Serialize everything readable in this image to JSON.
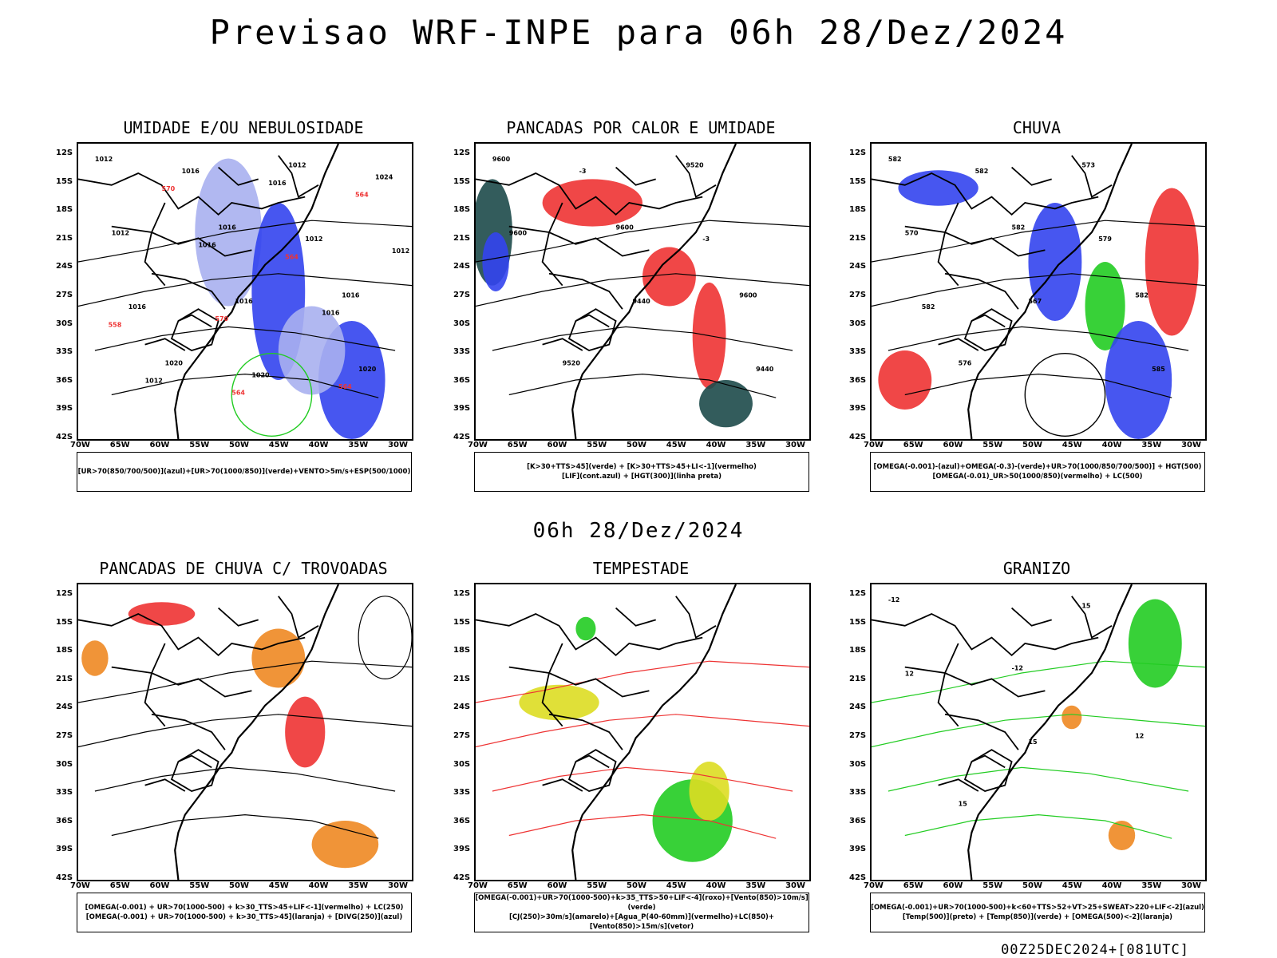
{
  "title": "Previsao WRF-INPE  para 06h 28/Dez/2024",
  "mid_time": "06h 28/Dez/2024",
  "footer": "00Z25DEC2024+[081UTC]",
  "lat_labels": [
    "12S",
    "15S",
    "18S",
    "21S",
    "24S",
    "27S",
    "30S",
    "33S",
    "36S",
    "39S",
    "42S"
  ],
  "lon_labels": [
    "70W",
    "65W",
    "60W",
    "55W",
    "50W",
    "45W",
    "40W",
    "35W",
    "30W"
  ],
  "panels": [
    {
      "title": "UMIDADE E/OU NEBULOSIDADE",
      "legend": [
        "[UR>70(850/700/500)](azul)+[UR>70(1000/850)](verde)+VENTO>5m/s+ESP(500/1000)"
      ]
    },
    {
      "title": "PANCADAS POR CALOR E UMIDADE",
      "legend": [
        "[K>30+TTS>45](verde) + [K>30+TTS>45+LI<-1](vermelho)",
        "[LIF](cont.azul) + [HGT(300)](linha preta)"
      ]
    },
    {
      "title": "CHUVA",
      "legend": [
        "[OMEGA(-0.001)-(azul)+OMEGA(-0.3)-(verde)+UR>70(1000/850/700/500)] + HGT(500)",
        "[OMEGA(-0.01)_UR>50(1000/850)(vermelho) + LC(500)"
      ]
    },
    {
      "title": "PANCADAS DE CHUVA C/ TROVOADAS",
      "legend": [
        "[OMEGA(-0.001) + UR>70(1000-500) + k>30_TTS>45+LIF<-1](vermelho) + LC(250)",
        "[OMEGA(-0.001) + UR>70(1000-500) + k>30_TTS>45](laranja) + [DIVG(250)](azul)"
      ]
    },
    {
      "title": "TEMPESTADE",
      "legend": [
        "[OMEGA(-0.001)+UR>70(1000-500)+k>35_TTS>50+LIF<-4](roxo)+[Vento(850)>10m/s](verde)",
        "[CJ(250)>30m/s](amarelo)+[Agua_P(40-60mm)](vermelho)+LC(850)+[Vento(850)>15m/s](vetor)"
      ]
    },
    {
      "title": "GRANIZO",
      "legend": [
        "[OMEGA(-0.001)+UR>70(1000-500)+k<60+TTS>52+VT>25+SWEAT>220+LIF<-2](azul)",
        "[Temp(500)](preto) + [Temp(850)](verde) + [OMEGA(500)<-2](laranja)"
      ]
    }
  ],
  "contour_labels": {
    "p1": [
      "1012",
      "1016",
      "1016",
      "1020",
      "1012",
      "1012",
      "1016",
      "1020",
      "1016",
      "1012",
      "1016",
      "1020",
      "1024",
      "1016",
      "1016",
      "1012",
      "1016",
      "1012",
      "570",
      "564",
      "570",
      "564",
      "558",
      "564",
      "564"
    ],
    "p2": [
      "9600",
      "9600",
      "9600",
      "9520",
      "9520",
      "9600",
      "9440",
      "9440",
      "-3",
      "-3"
    ],
    "p3": [
      "582",
      "582",
      "582",
      "576",
      "573",
      "570",
      "567",
      "585",
      "582",
      "579",
      "582"
    ],
    "p6": [
      "-12",
      "-12",
      "12",
      "15",
      "15",
      "12",
      "15"
    ]
  },
  "colors": {
    "blue": "#3344ee",
    "green": "#22cc22",
    "red": "#ee3333",
    "orange": "#ee8822",
    "darkteal": "#1d4a4a",
    "yellow": "#dddd22",
    "lightblue": "#a8b0f0"
  }
}
